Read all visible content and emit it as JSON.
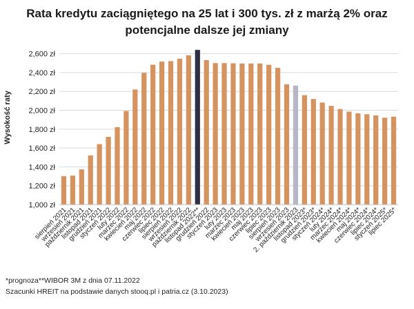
{
  "chart_data": {
    "type": "bar",
    "title": "Rata kredytu zaciągniętego na 25 lat i 300 tys. zł z marżą 2% oraz potencjalne dalsze jej zmiany",
    "title_lines": [
      "Rata kredytu zaciągniętego na 25 lat i 300 tys. zł z marżą 2% oraz",
      "potencjalne dalsze jej zmiany"
    ],
    "xlabel": "",
    "ylabel": "Wysokość raty",
    "ylim": [
      1000,
      2700
    ],
    "yticks": [
      1000,
      1200,
      1400,
      1600,
      1800,
      2000,
      2200,
      2400,
      2600
    ],
    "ytick_labels": [
      "1,000 zł",
      "1,200 zł",
      "1,400 zł",
      "1,600 zł",
      "1,800 zł",
      "2,000 zł",
      "2,200 zł",
      "2,400 zł",
      "2,600 zł"
    ],
    "grid": true,
    "categories": [
      "sierpień 2021",
      "wrzesień 2021",
      "październik 2021",
      "listopad 2021",
      "grudzień 2021",
      "styczeń 2022",
      "luty 2022",
      "marzec 2022",
      "kwiecień 2022",
      "maj 2022",
      "czerwiec 2022",
      "lipiec 2022",
      "sierpień 2022",
      "wrzesień 2022",
      "październik 2022",
      "listopad 2022**",
      "grudzień 2022",
      "styczeń 2023",
      "luty 2023",
      "marzec 2023",
      "kwiecień 2023",
      "maj 2023",
      "czerwiec 2023",
      "lipiec 2023",
      "sierpień 2023",
      "wrzesień 2023",
      "2. październik 2023",
      "listopad 2023*",
      "grudzień 2023*",
      "styczeń 2024*",
      "luty 2024*",
      "marzec 2024*",
      "kwiecień 2024*",
      "maj 2024*",
      "czerwiec 2024*",
      "lipiec 2024*",
      "styczeń 2025*",
      "lipiec 2025*"
    ],
    "values": [
      1302,
      1307,
      1373,
      1521,
      1641,
      1718,
      1821,
      1993,
      2221,
      2398,
      2483,
      2516,
      2521,
      2547,
      2583,
      2640,
      2532,
      2500,
      2500,
      2498,
      2496,
      2496,
      2496,
      2482,
      2450,
      2275,
      2262,
      2160,
      2120,
      2082,
      2046,
      2013,
      1985,
      1968,
      1958,
      1945,
      1921,
      1932
    ],
    "colors": {
      "default": "#d4935f",
      "highlight": "#2d2f45",
      "current": "#b7b6c6",
      "grid": "#d9d9d9",
      "axis": "#bfbfbf"
    },
    "highlight_index": 15,
    "current_index": 26
  },
  "footnotes": {
    "line1": "*prognoza**WIBOR 3M z dnia 07.11.2022",
    "line2": "Szacunki HREIT na podstawie danych stooq.pl i patria.cz (3.10.2023)"
  }
}
